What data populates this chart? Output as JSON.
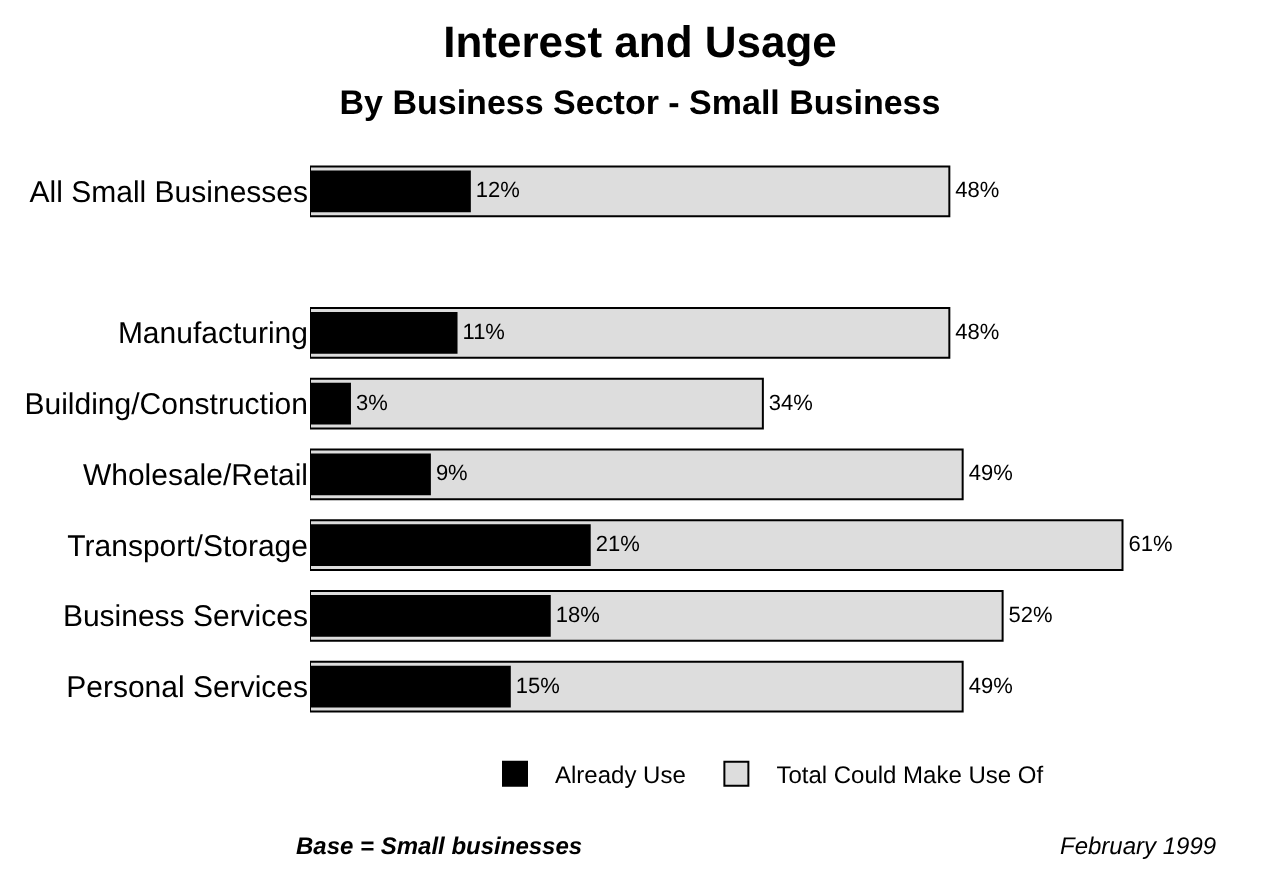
{
  "chart_data": {
    "type": "bar",
    "orientation": "horizontal",
    "title": "Interest and Usage",
    "subtitle": "By Business Sector - Small Business",
    "categories": [
      "All Small Businesses",
      null,
      "Manufacturing",
      "Building/Construction",
      "Wholesale/Retail",
      "Transport/Storage",
      "Business Services",
      "Personal Services"
    ],
    "series": [
      {
        "name": "Already Use",
        "color": "#000000",
        "values": [
          12,
          null,
          11,
          3,
          9,
          21,
          18,
          15
        ],
        "value_labels": [
          "12%",
          null,
          "11%",
          "3%",
          "9%",
          "21%",
          "18%",
          "15%"
        ]
      },
      {
        "name": "Total Could Make Use Of",
        "color": "#dddddd",
        "values": [
          48,
          null,
          48,
          34,
          49,
          61,
          52,
          49
        ],
        "value_labels": [
          "48%",
          null,
          "48%",
          "34%",
          "49%",
          "61%",
          "52%",
          "49%"
        ]
      }
    ],
    "legend": "bottom",
    "annotations": [
      "Base = Small businesses",
      "February 1999"
    ]
  }
}
